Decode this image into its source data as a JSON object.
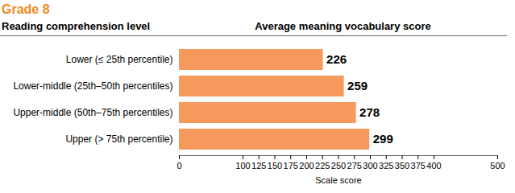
{
  "chart_data": {
    "type": "bar",
    "orientation": "horizontal",
    "title": "Grade 8",
    "subtitle": "Average meaning vocabulary score",
    "ylabel": "Reading comprehension level",
    "xlabel": "Scale score",
    "categories": [
      "Lower (≤ 25th percentile)",
      "Lower-middle (25th–50th percentiles)",
      "Upper-middle (50th–75th percentiles)",
      "Upper (> 75th percentile)"
    ],
    "values": [
      226,
      259,
      278,
      299
    ],
    "color": "#f6995c",
    "xlim": [
      0,
      500
    ],
    "xticks": [
      0,
      100,
      125,
      150,
      175,
      200,
      225,
      250,
      275,
      300,
      325,
      350,
      375,
      400,
      500
    ],
    "grid": false,
    "data_labels": true
  }
}
